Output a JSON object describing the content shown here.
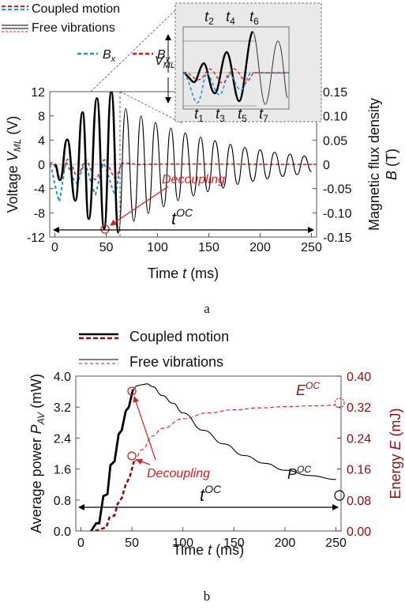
{
  "chart_data": [
    {
      "panel_label": "a",
      "type": "line",
      "xlabel_prefix": "Time ",
      "xlabel_var": "t",
      "xlabel_unit": " (ms)",
      "ylabel_prefix": "Voltage ",
      "ylabel_var": "V",
      "ylabel_sub": "ML",
      "ylabel_unit": " (V)",
      "y2label_line1": "Magnetic flux density",
      "y2label_var": "B",
      "y2label_unit": " (T)",
      "xlim": [
        -5,
        255
      ],
      "ylim": [
        -12,
        12
      ],
      "y2lim": [
        -0.15,
        0.15
      ],
      "xticks": [
        "0",
        "50",
        "100",
        "150",
        "200",
        "250"
      ],
      "yticks": [
        "12",
        "8",
        "4",
        "0",
        "-4",
        "-8",
        "-12"
      ],
      "y2ticks": [
        "0.15",
        "0.10",
        "0.05",
        "0",
        "-0.05",
        "-0.10",
        "-0.15"
      ],
      "legend": {
        "coupled": "Coupled motion",
        "free": "Free vibrations",
        "bx_var": "B",
        "bx_sub": "x",
        "by_var": "B",
        "by_sub": "y"
      },
      "annotations": {
        "decoupling": "Decoupling",
        "t_oc_var": "t",
        "t_oc_sup": "OC",
        "inset_vml_var": "V",
        "inset_vml_sub": "ML",
        "inset_top_times": [
          {
            "v": "t",
            "s": "2"
          },
          {
            "v": "t",
            "s": "4"
          },
          {
            "v": "t",
            "s": "6"
          }
        ],
        "inset_bottom_times": [
          {
            "v": "t",
            "s": "1"
          },
          {
            "v": "t",
            "s": "3"
          },
          {
            "v": "t",
            "s": "5"
          },
          {
            "v": "t",
            "s": "7"
          }
        ]
      },
      "decoupling_time_ms": 55,
      "t_oc_range_ms": [
        0,
        250
      ],
      "series": [
        {
          "name": "Coupled motion",
          "color": "#000000",
          "points": [
            [
              0,
              0
            ],
            [
              5,
              -2.6
            ],
            [
              12,
              4.1
            ],
            [
              20,
              -6.0
            ],
            [
              27,
              8.6
            ],
            [
              33,
              -9.0
            ],
            [
              41,
              10.9
            ],
            [
              48,
              -10.6
            ],
            [
              55,
              12.0
            ],
            [
              62,
              -11.3
            ]
          ]
        },
        {
          "name": "Free vibrations",
          "color": "#000000",
          "points": [
            [
              62,
              -11.3
            ],
            [
              69,
              9.2
            ],
            [
              77,
              -9.4
            ],
            [
              84,
              8.0
            ],
            [
              91,
              -8.1
            ],
            [
              98,
              6.9
            ],
            [
              106,
              -7.0
            ],
            [
              113,
              6.0
            ],
            [
              120,
              -6.0
            ],
            [
              127,
              5.2
            ],
            [
              135,
              -5.2
            ],
            [
              142,
              4.5
            ],
            [
              149,
              -4.5
            ],
            [
              156,
              3.9
            ],
            [
              164,
              -3.9
            ],
            [
              171,
              3.3
            ],
            [
              178,
              -3.3
            ],
            [
              185,
              2.8
            ],
            [
              193,
              -2.8
            ],
            [
              200,
              2.4
            ],
            [
              207,
              -2.4
            ],
            [
              214,
              2.0
            ],
            [
              222,
              -2.0
            ],
            [
              229,
              1.7
            ],
            [
              236,
              -1.7
            ],
            [
              243,
              1.4
            ],
            [
              250,
              -1.2
            ]
          ]
        }
      ],
      "colors": {
        "bx": "#2b8fd0",
        "by": "#d42020",
        "decoupling": "#d42020"
      }
    },
    {
      "panel_label": "b",
      "type": "line",
      "xlabel_prefix": "Time ",
      "xlabel_var": "t",
      "xlabel_unit": " (ms)",
      "ylabel_prefix": "Average power ",
      "ylabel_var": "P",
      "ylabel_sub": "AV",
      "ylabel_unit": " (mW)",
      "y2label_prefix": "Energy ",
      "y2label_var": "E",
      "y2label_unit": " (mJ)",
      "xlim": [
        -5,
        255
      ],
      "ylim": [
        0,
        4.0
      ],
      "y2lim": [
        0,
        0.4
      ],
      "xticks": [
        "0",
        "50",
        "100",
        "150",
        "200",
        "250"
      ],
      "yticks": [
        "0.0",
        "0.8",
        "1.6",
        "2.4",
        "3.2",
        "4.0"
      ],
      "y2ticks": [
        "0.00",
        "0.08",
        "0.16",
        "0.24",
        "0.32",
        "0.40"
      ],
      "legend": {
        "coupled": "Coupled motion",
        "free": "Free vibrations"
      },
      "annotations": {
        "decoupling": "Decoupling",
        "t_oc_var": "t",
        "t_oc_sup": "OC",
        "e_oc_var": "E",
        "e_oc_sup": "OC",
        "p_oc_var": "P",
        "p_oc_sup": "OC"
      },
      "series": [
        {
          "name": "Coupled motion (power)",
          "color": "#000000",
          "points": [
            [
              10,
              0
            ],
            [
              15,
              0.2
            ],
            [
              18,
              0.2
            ],
            [
              22,
              0.9
            ],
            [
              26,
              0.95
            ],
            [
              29,
              1.7
            ],
            [
              33,
              1.8
            ],
            [
              37,
              2.5
            ],
            [
              40,
              2.6
            ],
            [
              44,
              3.1
            ],
            [
              47,
              3.2
            ],
            [
              51,
              3.65
            ]
          ]
        },
        {
          "name": "Free vibrations (power)",
          "color": "#000000",
          "points": [
            [
              51,
              3.65
            ],
            [
              55,
              3.75
            ],
            [
              60,
              3.78
            ],
            [
              65,
              3.8
            ],
            [
              70,
              3.73
            ],
            [
              80,
              3.5
            ],
            [
              90,
              3.3
            ],
            [
              100,
              3.05
            ],
            [
              120,
              2.6
            ],
            [
              140,
              2.25
            ],
            [
              160,
              1.95
            ],
            [
              180,
              1.75
            ],
            [
              200,
              1.57
            ],
            [
              225,
              1.43
            ],
            [
              250,
              1.33
            ]
          ]
        },
        {
          "name": "Coupled motion (energy)",
          "color": "#8b1010",
          "points": [
            [
              14,
              0
            ],
            [
              20,
              0.005
            ],
            [
              25,
              0.01
            ],
            [
              28,
              0.035
            ],
            [
              33,
              0.04
            ],
            [
              36,
              0.07
            ],
            [
              40,
              0.085
            ],
            [
              44,
              0.12
            ],
            [
              48,
              0.14
            ],
            [
              52,
              0.18
            ]
          ]
        },
        {
          "name": "Free vibrations (energy)",
          "color": "#d42020",
          "points": [
            [
              52,
              0.18
            ],
            [
              60,
              0.21
            ],
            [
              70,
              0.245
            ],
            [
              80,
              0.265
            ],
            [
              100,
              0.29
            ],
            [
              125,
              0.305
            ],
            [
              150,
              0.313
            ],
            [
              175,
              0.318
            ],
            [
              200,
              0.321
            ],
            [
              225,
              0.323
            ],
            [
              250,
              0.325
            ]
          ]
        }
      ],
      "colors": {
        "energy_axis": "#8b1010",
        "decoupling": "#d42020",
        "energy": "#d42020"
      }
    }
  ]
}
